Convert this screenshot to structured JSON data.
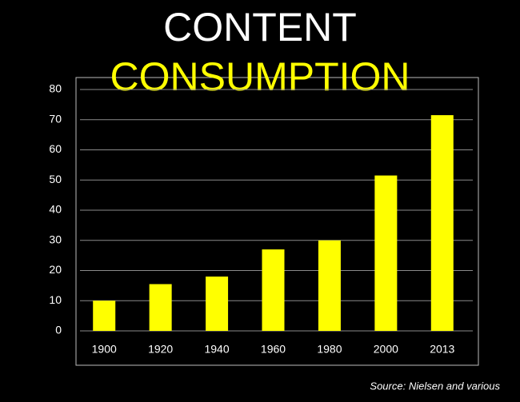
{
  "chart_data": {
    "type": "bar",
    "title": "CONTENT",
    "subtitle": "CONSUMPTION",
    "categories": [
      "1900",
      "1920",
      "1940",
      "1960",
      "1980",
      "2000",
      "2013"
    ],
    "values": [
      10,
      15.5,
      18,
      27,
      30,
      51.5,
      71.5
    ],
    "color": "#ffff00",
    "ylim": [
      0,
      80
    ],
    "yticks": [
      0,
      10,
      20,
      30,
      40,
      50,
      60,
      70,
      80
    ],
    "grid": true,
    "annotation": "Source: Nielsen and various"
  }
}
